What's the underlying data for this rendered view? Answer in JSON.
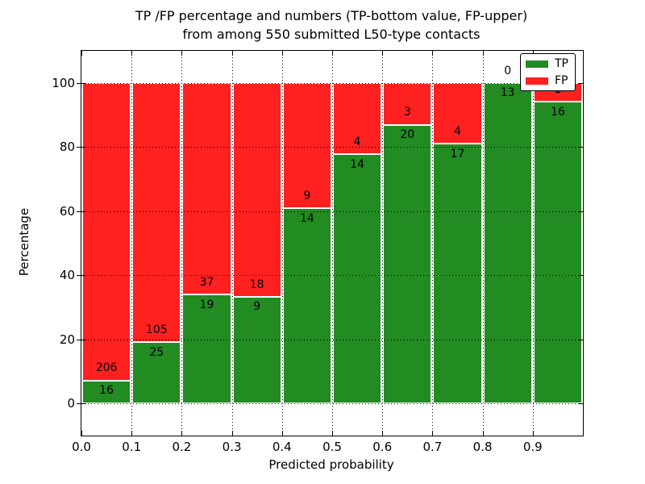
{
  "chart_data": {
    "type": "bar",
    "stacked": true,
    "title": "TP /FP percentage and numbers (TP-bottom value, FP-upper)",
    "subtitle": "from among 550 submitted L50-type contacts",
    "xlabel": "Predicted probability",
    "ylabel": "Percentage",
    "xlim": [
      0.0,
      1.0
    ],
    "ylim": [
      -10,
      110
    ],
    "bin_width": 0.1,
    "bin_starts": [
      0.0,
      0.1,
      0.2,
      0.3,
      0.4,
      0.5,
      0.6,
      0.7,
      0.8,
      0.9
    ],
    "categories": [
      "0.0-0.1",
      "0.1-0.2",
      "0.2-0.3",
      "0.3-0.4",
      "0.4-0.5",
      "0.5-0.6",
      "0.6-0.7",
      "0.7-0.8",
      "0.8-0.9",
      "0.9-1.0"
    ],
    "series": [
      {
        "name": "TP",
        "color": "#228b22",
        "counts": [
          16,
          25,
          19,
          9,
          14,
          14,
          20,
          17,
          13,
          16
        ]
      },
      {
        "name": "FP",
        "color": "#ff2020",
        "counts": [
          206,
          105,
          37,
          18,
          9,
          4,
          3,
          4,
          0,
          1
        ]
      }
    ],
    "tp_percent": [
      7.2,
      19.2,
      33.9,
      33.3,
      60.9,
      77.8,
      87.0,
      81.0,
      100.0,
      94.1
    ],
    "total_contacts": 550,
    "xticks": [
      "0.0",
      "0.1",
      "0.2",
      "0.3",
      "0.4",
      "0.5",
      "0.6",
      "0.7",
      "0.8",
      "0.9"
    ],
    "yticks": [
      0,
      20,
      40,
      60,
      80,
      100
    ],
    "grid": "dotted",
    "bar_edge_color": "#ffffff",
    "legend": {
      "position": "upper-right",
      "entries": [
        {
          "label": "TP",
          "color": "#228b22"
        },
        {
          "label": "FP",
          "color": "#ff2020"
        }
      ]
    }
  }
}
